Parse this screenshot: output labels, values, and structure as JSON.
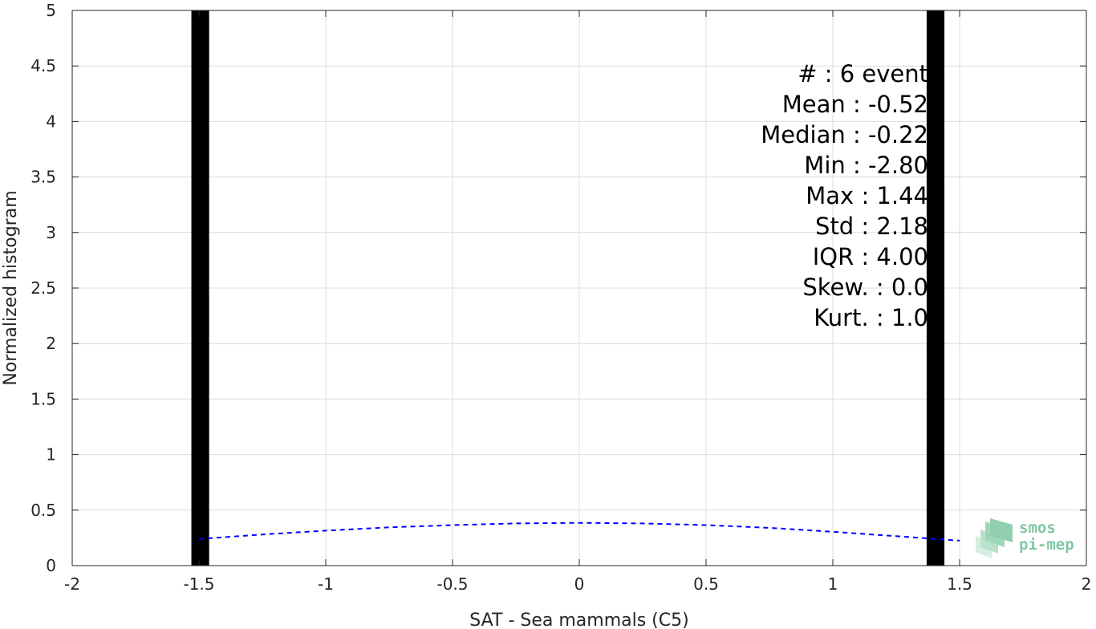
{
  "chart_data": {
    "type": "bar",
    "xlabel": "SAT - Sea mammals (C5)",
    "ylabel": "Normalized histogram",
    "xlim": [
      -2,
      2
    ],
    "ylim": [
      0,
      5
    ],
    "xticks": [
      "-2",
      "-1.5",
      "-1",
      "-0.5",
      "0",
      "0.5",
      "1",
      "1.5",
      "2"
    ],
    "yticks": [
      "0",
      "0.5",
      "1",
      "1.5",
      "2",
      "2.5",
      "3",
      "3.5",
      "4",
      "4.5",
      "5"
    ],
    "grid": true,
    "series": [
      {
        "type": "bar",
        "bars": [
          {
            "x0": -1.53,
            "x1": -1.46,
            "value": 5
          },
          {
            "x0": 1.37,
            "x1": 1.44,
            "value": 5
          }
        ],
        "color": "#000000"
      },
      {
        "type": "line",
        "style": "dashed",
        "color": "#0000ff",
        "x": [
          -1.5,
          -1.25,
          -1.0,
          -0.75,
          -0.5,
          -0.25,
          0.0,
          0.25,
          0.5,
          0.75,
          1.0,
          1.25,
          1.5
        ],
        "y": [
          0.24,
          0.28,
          0.315,
          0.345,
          0.365,
          0.38,
          0.385,
          0.38,
          0.365,
          0.34,
          0.305,
          0.265,
          0.225
        ]
      }
    ],
    "annotation_lines": [
      "#  : 6 event",
      "Mean : -0.52",
      "Median : -0.22",
      "Min : -2.80",
      "Max : 1.44",
      "Std : 2.18",
      "IQR : 4.00",
      "Skew. : 0.0",
      "Kurt. : 1.0"
    ]
  },
  "logo": {
    "line1": "smos",
    "line2": "pi-mep",
    "color": "#7fc7a3"
  }
}
